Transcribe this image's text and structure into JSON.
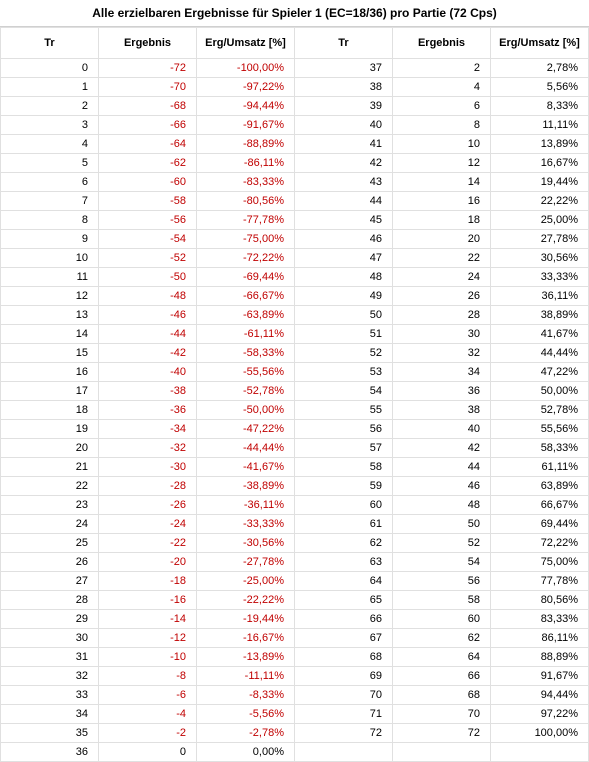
{
  "title": "Alle erzielbaren Ergebnisse für Spieler 1 (EC=18/36) pro Partie (72 Cps)",
  "headers": {
    "tr": "Tr",
    "ergebnis": "Ergebnis",
    "ergumsatz": "Erg/Umsatz [%]"
  },
  "colors": {
    "negative": "#c00000",
    "text": "#000000",
    "border": "#e0e0e0"
  },
  "rows": [
    {
      "tr": 0,
      "erg": -72,
      "pct": "-100,00%",
      "tr2": 37,
      "erg2": 2,
      "pct2": "2,78%"
    },
    {
      "tr": 1,
      "erg": -70,
      "pct": "-97,22%",
      "tr2": 38,
      "erg2": 4,
      "pct2": "5,56%"
    },
    {
      "tr": 2,
      "erg": -68,
      "pct": "-94,44%",
      "tr2": 39,
      "erg2": 6,
      "pct2": "8,33%"
    },
    {
      "tr": 3,
      "erg": -66,
      "pct": "-91,67%",
      "tr2": 40,
      "erg2": 8,
      "pct2": "11,11%"
    },
    {
      "tr": 4,
      "erg": -64,
      "pct": "-88,89%",
      "tr2": 41,
      "erg2": 10,
      "pct2": "13,89%"
    },
    {
      "tr": 5,
      "erg": -62,
      "pct": "-86,11%",
      "tr2": 42,
      "erg2": 12,
      "pct2": "16,67%"
    },
    {
      "tr": 6,
      "erg": -60,
      "pct": "-83,33%",
      "tr2": 43,
      "erg2": 14,
      "pct2": "19,44%"
    },
    {
      "tr": 7,
      "erg": -58,
      "pct": "-80,56%",
      "tr2": 44,
      "erg2": 16,
      "pct2": "22,22%"
    },
    {
      "tr": 8,
      "erg": -56,
      "pct": "-77,78%",
      "tr2": 45,
      "erg2": 18,
      "pct2": "25,00%"
    },
    {
      "tr": 9,
      "erg": -54,
      "pct": "-75,00%",
      "tr2": 46,
      "erg2": 20,
      "pct2": "27,78%"
    },
    {
      "tr": 10,
      "erg": -52,
      "pct": "-72,22%",
      "tr2": 47,
      "erg2": 22,
      "pct2": "30,56%"
    },
    {
      "tr": 11,
      "erg": -50,
      "pct": "-69,44%",
      "tr2": 48,
      "erg2": 24,
      "pct2": "33,33%"
    },
    {
      "tr": 12,
      "erg": -48,
      "pct": "-66,67%",
      "tr2": 49,
      "erg2": 26,
      "pct2": "36,11%"
    },
    {
      "tr": 13,
      "erg": -46,
      "pct": "-63,89%",
      "tr2": 50,
      "erg2": 28,
      "pct2": "38,89%"
    },
    {
      "tr": 14,
      "erg": -44,
      "pct": "-61,11%",
      "tr2": 51,
      "erg2": 30,
      "pct2": "41,67%"
    },
    {
      "tr": 15,
      "erg": -42,
      "pct": "-58,33%",
      "tr2": 52,
      "erg2": 32,
      "pct2": "44,44%"
    },
    {
      "tr": 16,
      "erg": -40,
      "pct": "-55,56%",
      "tr2": 53,
      "erg2": 34,
      "pct2": "47,22%"
    },
    {
      "tr": 17,
      "erg": -38,
      "pct": "-52,78%",
      "tr2": 54,
      "erg2": 36,
      "pct2": "50,00%"
    },
    {
      "tr": 18,
      "erg": -36,
      "pct": "-50,00%",
      "tr2": 55,
      "erg2": 38,
      "pct2": "52,78%"
    },
    {
      "tr": 19,
      "erg": -34,
      "pct": "-47,22%",
      "tr2": 56,
      "erg2": 40,
      "pct2": "55,56%"
    },
    {
      "tr": 20,
      "erg": -32,
      "pct": "-44,44%",
      "tr2": 57,
      "erg2": 42,
      "pct2": "58,33%"
    },
    {
      "tr": 21,
      "erg": -30,
      "pct": "-41,67%",
      "tr2": 58,
      "erg2": 44,
      "pct2": "61,11%"
    },
    {
      "tr": 22,
      "erg": -28,
      "pct": "-38,89%",
      "tr2": 59,
      "erg2": 46,
      "pct2": "63,89%"
    },
    {
      "tr": 23,
      "erg": -26,
      "pct": "-36,11%",
      "tr2": 60,
      "erg2": 48,
      "pct2": "66,67%"
    },
    {
      "tr": 24,
      "erg": -24,
      "pct": "-33,33%",
      "tr2": 61,
      "erg2": 50,
      "pct2": "69,44%"
    },
    {
      "tr": 25,
      "erg": -22,
      "pct": "-30,56%",
      "tr2": 62,
      "erg2": 52,
      "pct2": "72,22%"
    },
    {
      "tr": 26,
      "erg": -20,
      "pct": "-27,78%",
      "tr2": 63,
      "erg2": 54,
      "pct2": "75,00%"
    },
    {
      "tr": 27,
      "erg": -18,
      "pct": "-25,00%",
      "tr2": 64,
      "erg2": 56,
      "pct2": "77,78%"
    },
    {
      "tr": 28,
      "erg": -16,
      "pct": "-22,22%",
      "tr2": 65,
      "erg2": 58,
      "pct2": "80,56%"
    },
    {
      "tr": 29,
      "erg": -14,
      "pct": "-19,44%",
      "tr2": 66,
      "erg2": 60,
      "pct2": "83,33%"
    },
    {
      "tr": 30,
      "erg": -12,
      "pct": "-16,67%",
      "tr2": 67,
      "erg2": 62,
      "pct2": "86,11%"
    },
    {
      "tr": 31,
      "erg": -10,
      "pct": "-13,89%",
      "tr2": 68,
      "erg2": 64,
      "pct2": "88,89%"
    },
    {
      "tr": 32,
      "erg": -8,
      "pct": "-11,11%",
      "tr2": 69,
      "erg2": 66,
      "pct2": "91,67%"
    },
    {
      "tr": 33,
      "erg": -6,
      "pct": "-8,33%",
      "tr2": 70,
      "erg2": 68,
      "pct2": "94,44%"
    },
    {
      "tr": 34,
      "erg": -4,
      "pct": "-5,56%",
      "tr2": 71,
      "erg2": 70,
      "pct2": "97,22%"
    },
    {
      "tr": 35,
      "erg": -2,
      "pct": "-2,78%",
      "tr2": 72,
      "erg2": 72,
      "pct2": "100,00%"
    },
    {
      "tr": 36,
      "erg": 0,
      "pct": "0,00%",
      "tr2": "",
      "erg2": "",
      "pct2": ""
    }
  ]
}
